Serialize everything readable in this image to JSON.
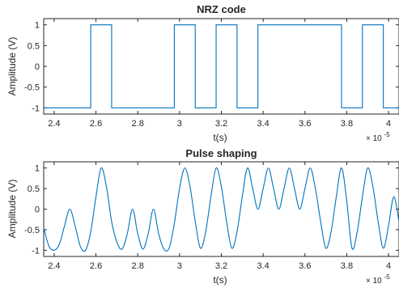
{
  "chart_data": [
    {
      "type": "line",
      "title": "NRZ code",
      "xlabel": "t(s)",
      "ylabel": "Amplitude (V)",
      "x_exponent_label": "× 10",
      "x_exponent_power": "-5",
      "x_scale_exponent": -5,
      "xlim": [
        2.35,
        4.05
      ],
      "ylim": [
        -1.15,
        1.15
      ],
      "xticks": [
        2.4,
        2.6,
        2.8,
        3,
        3.2,
        3.4,
        3.6,
        3.8,
        4
      ],
      "xtick_labels": [
        "2.4",
        "2.6",
        "2.8",
        "3",
        "3.2",
        "3.4",
        "3.6",
        "3.8",
        "4"
      ],
      "yticks": [
        -1,
        -0.5,
        0,
        0.5,
        1
      ],
      "ytick_labels": [
        "-1",
        "-0.5",
        "0",
        "0.5",
        "1"
      ],
      "grid": false,
      "color": "#0072bd",
      "step_transitions": [
        2.575,
        2.675,
        2.975,
        3.075,
        3.175,
        3.275,
        3.375,
        3.775,
        3.875,
        3.975
      ],
      "series": [
        {
          "values_style": "step",
          "x": [
            2.35,
            2.575,
            2.575,
            2.675,
            2.675,
            2.975,
            2.975,
            3.075,
            3.075,
            3.175,
            3.175,
            3.275,
            3.275,
            3.375,
            3.375,
            3.775,
            3.775,
            3.875,
            3.875,
            3.975,
            3.975,
            4.05
          ],
          "y": [
            -1,
            -1,
            1,
            1,
            -1,
            -1,
            1,
            1,
            -1,
            -1,
            1,
            1,
            -1,
            -1,
            1,
            1,
            -1,
            -1,
            1,
            1,
            -1,
            -1
          ]
        }
      ]
    },
    {
      "type": "line",
      "title": "Pulse shaping",
      "xlabel": "t(s)",
      "ylabel": "Amplitude (V)",
      "x_exponent_label": "× 10",
      "x_exponent_power": "-5",
      "x_scale_exponent": -5,
      "xlim": [
        2.35,
        4.05
      ],
      "ylim": [
        -1.15,
        1.15
      ],
      "xticks": [
        2.4,
        2.6,
        2.8,
        3,
        3.2,
        3.4,
        3.6,
        3.8,
        4
      ],
      "xtick_labels": [
        "2.4",
        "2.6",
        "2.8",
        "3",
        "3.2",
        "3.4",
        "3.6",
        "3.8",
        "4"
      ],
      "yticks": [
        -1,
        -0.5,
        0,
        0.5,
        1
      ],
      "ytick_labels": [
        "-1",
        "-0.5",
        "0",
        "0.5",
        "1"
      ],
      "grid": false,
      "color": "#0072bd",
      "series": [
        {
          "values_style": "smooth",
          "x": [
            2.35,
            2.375,
            2.4,
            2.425,
            2.45,
            2.475,
            2.5,
            2.525,
            2.55,
            2.575,
            2.6,
            2.625,
            2.65,
            2.675,
            2.7,
            2.725,
            2.75,
            2.775,
            2.8,
            2.825,
            2.85,
            2.875,
            2.9,
            2.925,
            2.95,
            2.975,
            3.0,
            3.025,
            3.05,
            3.075,
            3.1,
            3.125,
            3.15,
            3.175,
            3.2,
            3.225,
            3.25,
            3.275,
            3.3,
            3.325,
            3.35,
            3.375,
            3.4,
            3.425,
            3.45,
            3.475,
            3.5,
            3.525,
            3.55,
            3.575,
            3.6,
            3.625,
            3.65,
            3.675,
            3.7,
            3.725,
            3.75,
            3.775,
            3.8,
            3.825,
            3.85,
            3.875,
            3.9,
            3.925,
            3.95,
            3.975,
            4.0,
            4.025,
            4.05
          ],
          "y": [
            -0.45,
            -0.9,
            -1,
            -0.85,
            -0.4,
            0,
            -0.4,
            -0.9,
            -1,
            -0.55,
            0.3,
            1,
            0.55,
            -0.3,
            -0.8,
            -0.97,
            -0.6,
            0,
            -0.6,
            -0.97,
            -0.6,
            0,
            -0.6,
            -0.97,
            -0.95,
            -0.35,
            0.5,
            1,
            0.55,
            -0.3,
            -0.95,
            -0.55,
            0.3,
            1,
            0.55,
            -0.3,
            -0.95,
            -0.55,
            0.3,
            1,
            0.5,
            0,
            0.5,
            1,
            0.5,
            0,
            0.5,
            1,
            0.5,
            0,
            0.5,
            1,
            0.5,
            -0.3,
            -0.95,
            -0.55,
            0.3,
            1,
            0.2,
            -0.95,
            -0.55,
            0.3,
            1,
            0.55,
            -0.3,
            -0.95,
            -0.4,
            0.3,
            -0.3
          ]
        }
      ]
    }
  ]
}
